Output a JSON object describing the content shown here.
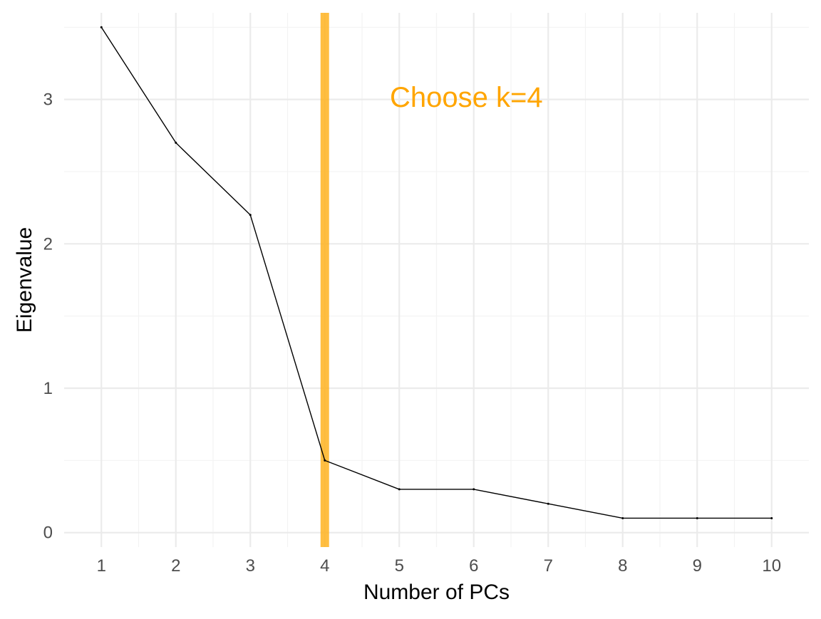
{
  "chart_data": {
    "type": "line",
    "title": "",
    "xlabel": "Number of PCs",
    "ylabel": "Eigenvalue",
    "x": [
      1,
      2,
      3,
      4,
      5,
      6,
      7,
      8,
      9,
      10
    ],
    "series": [
      {
        "values": [
          3.5,
          2.7,
          2.2,
          0.5,
          0.3,
          0.3,
          0.2,
          0.1,
          0.1,
          0.1
        ],
        "color": "#000000"
      }
    ],
    "xlim": [
      0.5,
      10.5
    ],
    "ylim": [
      -0.1,
      3.6
    ],
    "x_ticks": [
      1,
      2,
      3,
      4,
      5,
      6,
      7,
      8,
      9,
      10
    ],
    "y_ticks": [
      0,
      1,
      2,
      3
    ],
    "grid": true,
    "reference_line": {
      "orientation": "vertical",
      "x": 4,
      "color": "#FFB320"
    },
    "annotation": {
      "text": "Choose k=4",
      "x": 5.9,
      "y": 3.0,
      "color": "#FFA500"
    }
  }
}
